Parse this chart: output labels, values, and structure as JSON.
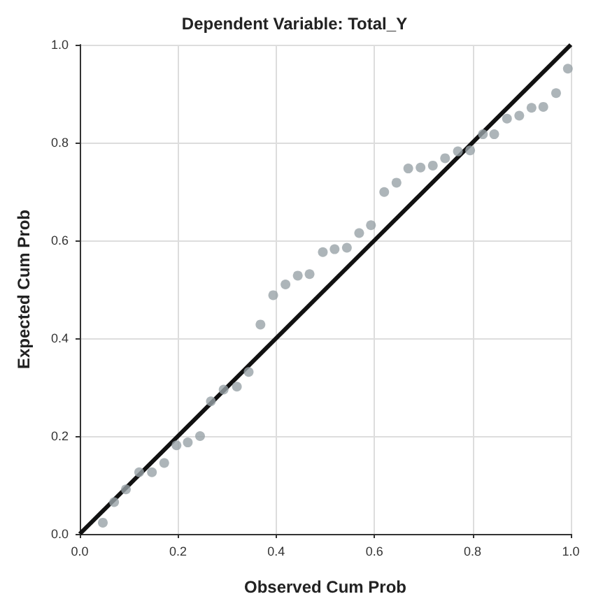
{
  "chart_data": {
    "type": "scatter",
    "title": "Dependent Variable: Total_Y",
    "xlabel": "Observed Cum Prob",
    "ylabel": "Expected Cum Prob",
    "xlim": [
      0,
      1
    ],
    "ylim": [
      0,
      1
    ],
    "xticks": [
      {
        "value": 0,
        "label": "0.0"
      },
      {
        "value": 0.2,
        "label": "0.2"
      },
      {
        "value": 0.4,
        "label": "0.4"
      },
      {
        "value": 0.6,
        "label": "0.6"
      },
      {
        "value": 0.8,
        "label": "0.8"
      },
      {
        "value": 1,
        "label": "1.0"
      }
    ],
    "yticks": [
      {
        "value": 0,
        "label": "0.0"
      },
      {
        "value": 0.2,
        "label": "0.2"
      },
      {
        "value": 0.4,
        "label": "0.4"
      },
      {
        "value": 0.6,
        "label": "0.6"
      },
      {
        "value": 0.8,
        "label": "0.8"
      },
      {
        "value": 1,
        "label": "1.0"
      }
    ],
    "grid": true,
    "marker": "circle",
    "series": [
      {
        "color": "#98a2a8",
        "x": [
          0.047,
          0.07,
          0.094,
          0.121,
          0.147,
          0.172,
          0.197,
          0.22,
          0.245,
          0.267,
          0.293,
          0.32,
          0.344,
          0.368,
          0.394,
          0.419,
          0.444,
          0.468,
          0.495,
          0.519,
          0.544,
          0.569,
          0.593,
          0.62,
          0.645,
          0.669,
          0.694,
          0.719,
          0.744,
          0.77,
          0.795,
          0.821,
          0.844,
          0.87,
          0.895,
          0.92,
          0.944,
          0.97,
          0.994
        ],
        "values": [
          0.023,
          0.065,
          0.091,
          0.126,
          0.126,
          0.145,
          0.181,
          0.187,
          0.2,
          0.271,
          0.295,
          0.301,
          0.331,
          0.428,
          0.488,
          0.51,
          0.528,
          0.531,
          0.576,
          0.582,
          0.585,
          0.615,
          0.631,
          0.699,
          0.718,
          0.747,
          0.749,
          0.753,
          0.768,
          0.782,
          0.784,
          0.817,
          0.817,
          0.849,
          0.855,
          0.871,
          0.873,
          0.901,
          0.951
        ]
      },
      {
        "type": "line",
        "color": "#111111",
        "line_style": "solid",
        "marker": "none",
        "x": [
          0,
          1
        ],
        "values": [
          0,
          1
        ]
      }
    ]
  }
}
